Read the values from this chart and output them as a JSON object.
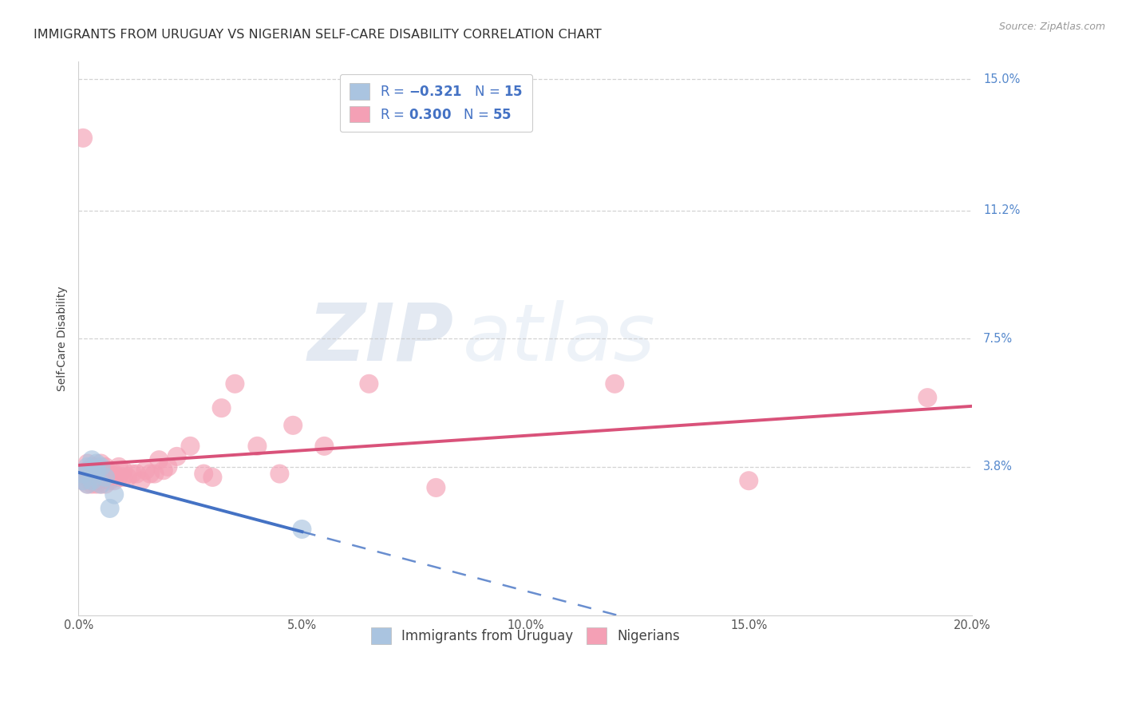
{
  "title": "IMMIGRANTS FROM URUGUAY VS NIGERIAN SELF-CARE DISABILITY CORRELATION CHART",
  "source": "Source: ZipAtlas.com",
  "ylabel": "Self-Care Disability",
  "xlim": [
    0.0,
    0.2
  ],
  "ylim": [
    -0.005,
    0.155
  ],
  "yticks": [
    0.038,
    0.075,
    0.112,
    0.15
  ],
  "ytick_labels": [
    "3.8%",
    "7.5%",
    "11.2%",
    "15.0%"
  ],
  "xticks": [
    0.0,
    0.05,
    0.1,
    0.15,
    0.2
  ],
  "xtick_labels": [
    "0.0%",
    "5.0%",
    "10.0%",
    "15.0%",
    "20.0%"
  ],
  "background_color": "#ffffff",
  "grid_color": "#c8c8c8",
  "uruguay_color": "#aac4e0",
  "nigeria_color": "#f4a0b5",
  "uruguay_line_color": "#4472c4",
  "nigeria_line_color": "#d9527a",
  "uruguay_R": -0.321,
  "uruguay_N": 15,
  "nigeria_R": 0.3,
  "nigeria_N": 55,
  "watermark_zip": "ZIP",
  "watermark_atlas": "atlas",
  "title_fontsize": 11.5,
  "axis_label_fontsize": 10,
  "tick_fontsize": 10.5,
  "legend_fontsize": 12,
  "uruguay_x": [
    0.001,
    0.001,
    0.002,
    0.002,
    0.003,
    0.003,
    0.003,
    0.004,
    0.004,
    0.005,
    0.005,
    0.006,
    0.007,
    0.008,
    0.05
  ],
  "uruguay_y": [
    0.034,
    0.036,
    0.033,
    0.038,
    0.034,
    0.037,
    0.04,
    0.037,
    0.039,
    0.033,
    0.038,
    0.035,
    0.026,
    0.03,
    0.02
  ],
  "nigeria_x": [
    0.001,
    0.001,
    0.001,
    0.002,
    0.002,
    0.002,
    0.002,
    0.003,
    0.003,
    0.003,
    0.003,
    0.004,
    0.004,
    0.004,
    0.004,
    0.005,
    0.005,
    0.005,
    0.005,
    0.006,
    0.006,
    0.006,
    0.007,
    0.007,
    0.008,
    0.008,
    0.009,
    0.009,
    0.01,
    0.01,
    0.011,
    0.012,
    0.013,
    0.014,
    0.015,
    0.016,
    0.017,
    0.018,
    0.019,
    0.02,
    0.022,
    0.025,
    0.028,
    0.03,
    0.032,
    0.035,
    0.04,
    0.045,
    0.048,
    0.055,
    0.065,
    0.08,
    0.12,
    0.15,
    0.19
  ],
  "nigeria_y": [
    0.034,
    0.036,
    0.133,
    0.033,
    0.035,
    0.037,
    0.039,
    0.033,
    0.034,
    0.036,
    0.038,
    0.033,
    0.034,
    0.036,
    0.038,
    0.033,
    0.035,
    0.037,
    0.039,
    0.033,
    0.035,
    0.038,
    0.034,
    0.036,
    0.034,
    0.036,
    0.035,
    0.038,
    0.035,
    0.037,
    0.035,
    0.036,
    0.036,
    0.034,
    0.037,
    0.036,
    0.036,
    0.04,
    0.037,
    0.038,
    0.041,
    0.044,
    0.036,
    0.035,
    0.055,
    0.062,
    0.044,
    0.036,
    0.05,
    0.044,
    0.062,
    0.032,
    0.062,
    0.034,
    0.058
  ]
}
